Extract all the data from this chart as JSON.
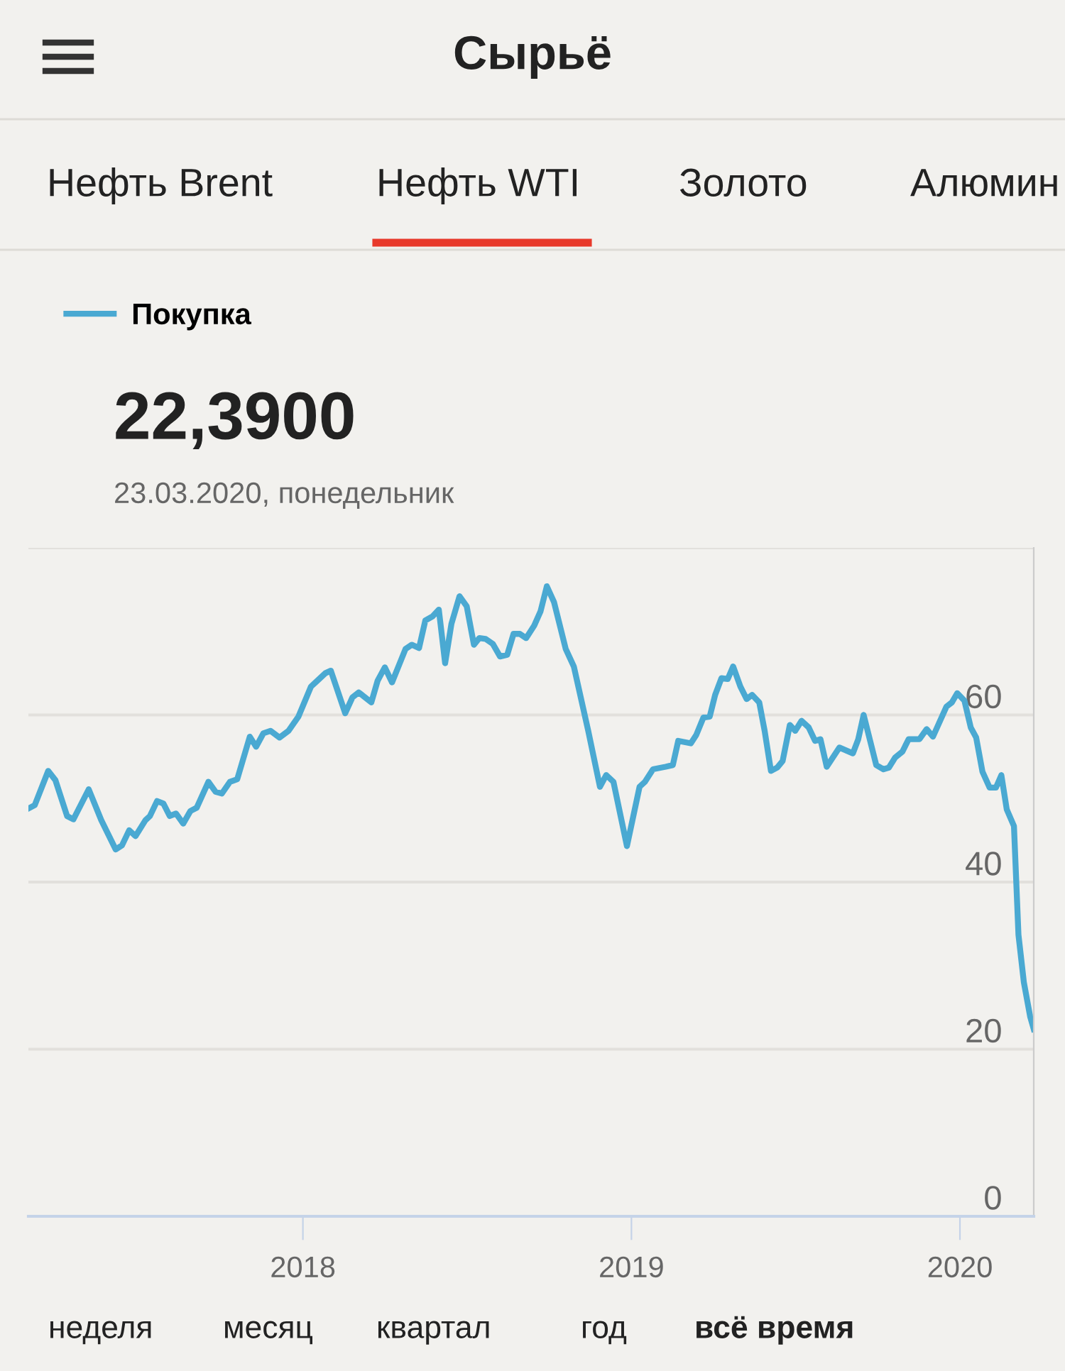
{
  "chart_data": {
    "type": "line",
    "title": "Сырьё",
    "x": [
      "2017-03-02",
      "2017-03-09",
      "2017-03-24",
      "2017-04-01",
      "2017-04-14",
      "2017-04-21",
      "2017-05-08",
      "2017-05-22",
      "2017-06-07",
      "2017-06-14",
      "2017-06-22",
      "2017-06-29",
      "2017-07-10",
      "2017-07-15",
      "2017-07-23",
      "2017-07-30",
      "2017-08-06",
      "2017-08-13",
      "2017-08-21",
      "2017-08-29",
      "2017-09-05",
      "2017-09-18",
      "2017-09-26",
      "2017-10-03",
      "2017-10-12",
      "2017-10-20",
      "2017-11-03",
      "2017-11-10",
      "2017-11-18",
      "2017-11-26",
      "2017-12-06",
      "2017-12-16",
      "2017-12-27",
      "2018-01-10",
      "2018-01-15",
      "2018-01-26",
      "2018-02-01",
      "2018-02-17",
      "2018-02-25",
      "2018-03-04",
      "2018-03-18",
      "2018-03-25",
      "2018-04-02",
      "2018-04-10",
      "2018-04-25",
      "2018-05-02",
      "2018-05-10",
      "2018-05-17",
      "2018-05-25",
      "2018-06-01",
      "2018-06-08",
      "2018-06-15",
      "2018-06-24",
      "2018-07-02",
      "2018-07-10",
      "2018-07-16",
      "2018-07-23",
      "2018-07-31",
      "2018-08-08",
      "2018-08-16",
      "2018-08-23",
      "2018-08-30",
      "2018-09-06",
      "2018-09-15",
      "2018-09-22",
      "2018-09-29",
      "2018-10-07",
      "2018-10-20",
      "2018-10-29",
      "2018-11-14",
      "2018-11-27",
      "2018-12-04",
      "2018-12-12",
      "2018-12-27",
      "2019-01-10",
      "2019-01-16",
      "2019-01-25",
      "2019-02-08",
      "2019-02-16",
      "2019-02-22",
      "2019-03-08",
      "2019-03-14",
      "2019-03-22",
      "2019-03-29",
      "2019-04-04",
      "2019-04-11",
      "2019-04-18",
      "2019-04-24",
      "2019-05-02",
      "2019-05-09",
      "2019-05-15",
      "2019-05-23",
      "2019-05-29",
      "2019-06-05",
      "2019-06-12",
      "2019-06-18",
      "2019-06-26",
      "2019-07-02",
      "2019-07-09",
      "2019-07-17",
      "2019-07-24",
      "2019-07-30",
      "2019-08-06",
      "2019-08-20",
      "2019-09-04",
      "2019-09-10",
      "2019-09-16",
      "2019-09-30",
      "2019-10-08",
      "2019-10-14",
      "2019-10-21",
      "2019-10-29",
      "2019-11-05",
      "2019-11-17",
      "2019-11-25",
      "2019-12-02",
      "2019-12-17",
      "2019-12-23",
      "2019-12-29",
      "2020-01-06",
      "2020-01-13",
      "2020-01-19",
      "2020-01-26",
      "2020-02-03",
      "2020-02-10",
      "2020-02-16",
      "2020-02-22",
      "2020-03-01",
      "2020-03-06",
      "2020-03-12",
      "2020-03-19",
      "2020-03-23"
    ],
    "series": [
      {
        "name": "Покупка",
        "color": "#4aa9d2",
        "values": [
          48.8,
          49.2,
          53.3,
          52.2,
          47.9,
          47.5,
          51.1,
          47.4,
          43.9,
          44.4,
          46.2,
          45.5,
          47.4,
          47.9,
          49.7,
          49.4,
          47.9,
          48.2,
          47.0,
          48.5,
          48.9,
          52.0,
          50.8,
          50.6,
          52.0,
          52.3,
          57.4,
          56.2,
          57.8,
          58.1,
          57.3,
          58.1,
          59.8,
          63.4,
          63.9,
          65.0,
          65.3,
          60.2,
          62.1,
          62.7,
          61.5,
          64.1,
          65.7,
          63.9,
          67.9,
          68.4,
          68.0,
          71.3,
          71.8,
          72.6,
          66.2,
          70.9,
          74.2,
          73.0,
          68.4,
          69.2,
          69.1,
          68.5,
          67.0,
          67.2,
          69.7,
          69.7,
          69.2,
          70.7,
          72.4,
          75.4,
          73.5,
          67.9,
          65.8,
          58.1,
          51.4,
          52.8,
          52.0,
          44.3,
          51.4,
          52.0,
          53.5,
          53.8,
          54.0,
          56.9,
          56.6,
          57.6,
          59.7,
          59.8,
          62.4,
          64.4,
          64.3,
          65.8,
          63.4,
          61.9,
          62.4,
          61.5,
          58.1,
          53.3,
          53.7,
          54.5,
          58.8,
          58.1,
          59.3,
          58.5,
          56.9,
          57.1,
          53.8,
          56.1,
          55.4,
          57.1,
          60.0,
          54.0,
          53.5,
          53.7,
          54.9,
          55.6,
          57.1,
          57.1,
          58.3,
          57.4,
          61.0,
          61.5,
          62.6,
          61.7,
          58.5,
          57.3,
          53.2,
          51.3,
          51.3,
          52.8,
          48.7,
          46.7,
          33.7,
          28.0,
          23.9,
          22.4
        ]
      }
    ],
    "xlim": [
      "2017-03-02",
      "2020-03-23"
    ],
    "xticks": [
      {
        "value": "2018-01-01",
        "label": "2018"
      },
      {
        "value": "2019-01-01",
        "label": "2019"
      },
      {
        "value": "2020-01-01",
        "label": "2020"
      }
    ],
    "ylim": [
      0,
      80
    ],
    "yticks": [
      0,
      20,
      40,
      {
        "value": 60,
        "label": "60"
      },
      {
        "value": 80,
        "label": null
      }
    ],
    "grid": "y",
    "legend": "top left",
    "marker": "none",
    "line_style": "solid",
    "annotations": [
      "Нефть Brent",
      "Нефть WTI",
      "Золото",
      "Алюмин",
      "22,3900",
      "23.03.2020, понедельник",
      "неделя",
      "месяц",
      "квартал",
      "год",
      "всё время"
    ]
  }
}
